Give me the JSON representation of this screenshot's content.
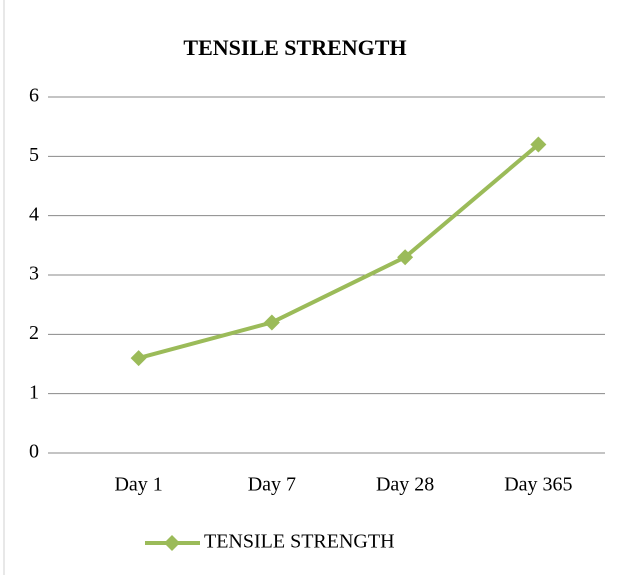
{
  "chart_data": {
    "type": "line",
    "title": "TENSILE STRENGTH",
    "categories": [
      "Day 1",
      "Day 7",
      "Day 28",
      "Day 365"
    ],
    "series": [
      {
        "name": "TENSILE STRENGTH",
        "color": "#9bbb59",
        "values": [
          1.6,
          2.2,
          3.3,
          5.2
        ]
      }
    ],
    "ylim": [
      0,
      6
    ],
    "yticks": [
      0,
      1,
      2,
      3,
      4,
      5,
      6
    ],
    "grid": true,
    "legend": "bottom"
  }
}
